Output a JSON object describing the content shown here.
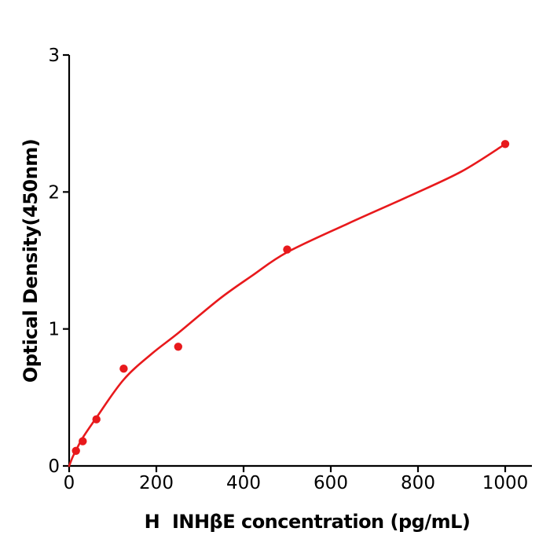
{
  "chart_data": {
    "type": "scatter",
    "title": "",
    "xlabel": "H  INHβE concentration (pg/mL)",
    "ylabel": "Optical Density(450nm)",
    "xlim": [
      0,
      1060
    ],
    "ylim": [
      0,
      3
    ],
    "x_ticks": [
      0,
      200,
      400,
      600,
      800,
      1000
    ],
    "y_ticks": [
      0,
      1,
      2,
      3
    ],
    "grid": false,
    "legend": "none",
    "series": [
      {
        "name": "standard-points",
        "type": "scatter",
        "color": "#e8191c",
        "marker_radius": 5.2,
        "points": [
          [
            15.6,
            0.11
          ],
          [
            31.2,
            0.18
          ],
          [
            62.5,
            0.34
          ],
          [
            125,
            0.71
          ],
          [
            250,
            0.87
          ],
          [
            500,
            1.58
          ],
          [
            1000,
            2.35
          ]
        ]
      },
      {
        "name": "fit-curve",
        "type": "line",
        "color": "#e8191c",
        "line_width": 2.6,
        "points": [
          [
            0,
            0.0
          ],
          [
            8,
            0.065
          ],
          [
            16,
            0.115
          ],
          [
            31,
            0.205
          ],
          [
            62,
            0.35
          ],
          [
            125,
            0.63
          ],
          [
            190,
            0.82
          ],
          [
            250,
            0.97
          ],
          [
            345,
            1.22
          ],
          [
            420,
            1.39
          ],
          [
            500,
            1.56
          ],
          [
            640,
            1.77
          ],
          [
            780,
            1.97
          ],
          [
            900,
            2.15
          ],
          [
            1000,
            2.35
          ]
        ]
      }
    ]
  },
  "colors": {
    "accent": "#e8191c",
    "axis": "#000000",
    "background": "#ffffff"
  }
}
